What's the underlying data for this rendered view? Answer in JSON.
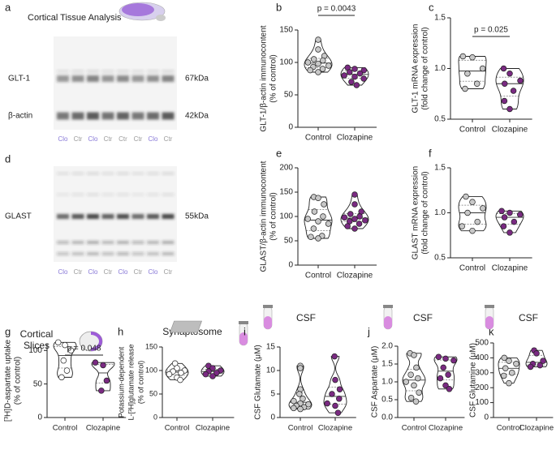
{
  "panel_a": {
    "letter": "a",
    "title": "Cortical Tissue Analysis",
    "bands": [
      {
        "label": "GLT-1",
        "size": "67kDa"
      },
      {
        "label": "β-actin",
        "size": "42kDa"
      }
    ],
    "lanes": [
      {
        "label": "Clo",
        "color": "#8a7ad8"
      },
      {
        "label": "Ctr",
        "color": "#9a9a9a"
      },
      {
        "label": "Clo",
        "color": "#8a7ad8"
      },
      {
        "label": "Ctr",
        "color": "#9a9a9a"
      },
      {
        "label": "Ctr",
        "color": "#9a9a9a"
      },
      {
        "label": "Ctr",
        "color": "#9a9a9a"
      },
      {
        "label": "Clo",
        "color": "#8a7ad8"
      },
      {
        "label": "Ctr",
        "color": "#9a9a9a"
      }
    ]
  },
  "panel_d": {
    "letter": "d",
    "bands": [
      {
        "label": "GLAST",
        "size": "55kDa"
      }
    ],
    "lanes": [
      {
        "label": "Clo",
        "color": "#8a7ad8"
      },
      {
        "label": "Ctr",
        "color": "#9a9a9a"
      },
      {
        "label": "Clo",
        "color": "#8a7ad8"
      },
      {
        "label": "Ctr",
        "color": "#9a9a9a"
      },
      {
        "label": "Clo",
        "color": "#8a7ad8"
      },
      {
        "label": "Ctr",
        "color": "#9a9a9a"
      },
      {
        "label": "Clo",
        "color": "#8a7ad8"
      },
      {
        "label": "Ctr",
        "color": "#9a9a9a"
      }
    ]
  },
  "chart_data": [
    {
      "type": "violin",
      "letter": "b",
      "y_label": [
        "GLT-1/β-actin immunocontent",
        "(% of control)"
      ],
      "categories": [
        "Control",
        "Clozapine"
      ],
      "series": [
        {
          "color": "#c8c8c8",
          "values": [
            135,
            120,
            110,
            105,
            103,
            100,
            98,
            95,
            93,
            90,
            88,
            85
          ]
        },
        {
          "color": "#7a2a82",
          "values": [
            92,
            90,
            88,
            85,
            83,
            80,
            78,
            75,
            70,
            65
          ]
        }
      ],
      "ylim": [
        0,
        150
      ],
      "yticks": [
        0,
        50,
        100,
        150
      ],
      "annotation": "p = 0.0043"
    },
    {
      "type": "violin",
      "letter": "c",
      "y_label": [
        "GLT-1 mRNA expression",
        "(fold change of control)"
      ],
      "categories": [
        "Control",
        "Clozapine"
      ],
      "series": [
        {
          "color": "#c8c8c8",
          "values": [
            1.12,
            1.11,
            1.0,
            0.95,
            0.85,
            0.8
          ]
        },
        {
          "color": "#7a2a82",
          "values": [
            1.0,
            0.95,
            0.88,
            0.85,
            0.78,
            0.68,
            0.6
          ]
        }
      ],
      "ylim": [
        0.5,
        1.5
      ],
      "yticks": [
        0.5,
        {
          "value": 1,
          "label": "1.0"
        },
        1.5
      ],
      "annotation": "p = 0.025"
    },
    {
      "type": "violin",
      "letter": "e",
      "y_label": [
        "GLAST/β-actin immunocontent",
        "(% of control)"
      ],
      "categories": [
        "Control",
        "Clozapine"
      ],
      "series": [
        {
          "color": "#c8c8c8",
          "values": [
            140,
            138,
            125,
            110,
            100,
            95,
            90,
            85,
            75,
            60,
            58,
            55
          ]
        },
        {
          "color": "#7a2a82",
          "values": [
            145,
            125,
            110,
            105,
            100,
            98,
            95,
            92,
            90,
            85,
            80,
            75
          ]
        }
      ],
      "ylim": [
        0,
        200
      ],
      "yticks": [
        0,
        50,
        100,
        150,
        200
      ]
    },
    {
      "type": "violin",
      "letter": "f",
      "y_label": [
        "GLAST mRNA expression",
        "(fold change of control)"
      ],
      "categories": [
        "Control",
        "Clozapine"
      ],
      "series": [
        {
          "color": "#c8c8c8",
          "values": [
            1.18,
            1.12,
            1.05,
            1.0,
            0.9,
            0.85,
            0.8
          ]
        },
        {
          "color": "#7a2a82",
          "values": [
            1.02,
            1.0,
            0.98,
            0.95,
            0.9,
            0.85,
            0.78
          ]
        }
      ],
      "ylim": [
        0.5,
        1.5
      ],
      "yticks": [
        0.5,
        {
          "value": 1,
          "label": "1.0"
        },
        1.5
      ]
    },
    {
      "type": "violin",
      "letter": "g",
      "header": [
        "Cortical",
        "Slices"
      ],
      "y_label": [
        "[³H]D-aspartate uptake",
        "(% of control)"
      ],
      "categories": [
        "Control",
        "Clozapine"
      ],
      "series": [
        {
          "color": "#ffffff",
          "values": [
            112,
            108,
            100,
            85,
            70,
            60
          ]
        },
        {
          "color": "#7a2a82",
          "values": [
            82,
            78,
            55,
            40
          ]
        }
      ],
      "ylim": [
        0,
        110
      ],
      "yticks": [
        0,
        50,
        100
      ],
      "annotation": "p = 0.048"
    },
    {
      "type": "violin",
      "letter": "h",
      "header": [
        "Synaptosome"
      ],
      "y_label": [
        "Potassium-dependent",
        "L-[³H]glutamate release",
        "(% of control)"
      ],
      "categories": [
        "Control",
        "Clozapine"
      ],
      "series": [
        {
          "color": "#ffffff",
          "values": [
            115,
            105,
            100,
            98,
            95,
            92,
            85,
            80
          ]
        },
        {
          "color": "#7a2a82",
          "values": [
            110,
            105,
            100,
            98,
            95,
            92,
            88
          ]
        }
      ],
      "ylim": [
        0,
        150
      ],
      "yticks": [
        0,
        50,
        100,
        150
      ]
    },
    {
      "type": "violin",
      "letter": "i",
      "header": [
        "CSF"
      ],
      "y_label": [
        "CSF Glutamate  (μM)"
      ],
      "categories": [
        "Control",
        "Clozapine"
      ],
      "series": [
        {
          "color": "#c8c8c8",
          "values": [
            11,
            10.5,
            6,
            5,
            4,
            3.5,
            3,
            2.8,
            2.5,
            2.2,
            2,
            1.8
          ]
        },
        {
          "color": "#7a2a82",
          "values": [
            13,
            8,
            6,
            5,
            4,
            3,
            2.5,
            1
          ]
        }
      ],
      "ylim": [
        0,
        15
      ],
      "yticks": [
        0,
        5,
        10,
        15
      ]
    },
    {
      "type": "violin",
      "letter": "j",
      "header": [
        "CSF"
      ],
      "y_label": [
        "CSF Aspartate (μM)"
      ],
      "categories": [
        "Control",
        "Clozapine"
      ],
      "series": [
        {
          "color": "#c8c8c8",
          "values": [
            1.8,
            1.75,
            1.4,
            1.2,
            1.1,
            1.0,
            0.9,
            0.7,
            0.55,
            0.45
          ]
        },
        {
          "color": "#7a2a82",
          "values": [
            1.7,
            1.65,
            1.6,
            1.4,
            1.2,
            1.1,
            0.9,
            0.8
          ]
        }
      ],
      "ylim": [
        0,
        2
      ],
      "yticks": [
        {
          "value": 0,
          "label": "0.0"
        },
        0.5,
        {
          "value": 1,
          "label": "1.0"
        },
        1.5,
        {
          "value": 2,
          "label": "2.0"
        }
      ]
    },
    {
      "type": "violin",
      "letter": "k",
      "header": [
        "CSF"
      ],
      "y_label": [
        "CSF Glutamine (μM)"
      ],
      "categories": [
        "Control",
        "Clozapine"
      ],
      "series": [
        {
          "color": "#c8c8c8",
          "values": [
            400,
            380,
            360,
            330,
            300,
            280,
            230
          ]
        },
        {
          "color": "#7a2a82",
          "values": [
            450,
            430,
            380,
            360,
            350,
            340
          ]
        }
      ],
      "ylim": [
        0,
        500
      ],
      "yticks": [
        0,
        100,
        200,
        300,
        400,
        500
      ]
    }
  ]
}
